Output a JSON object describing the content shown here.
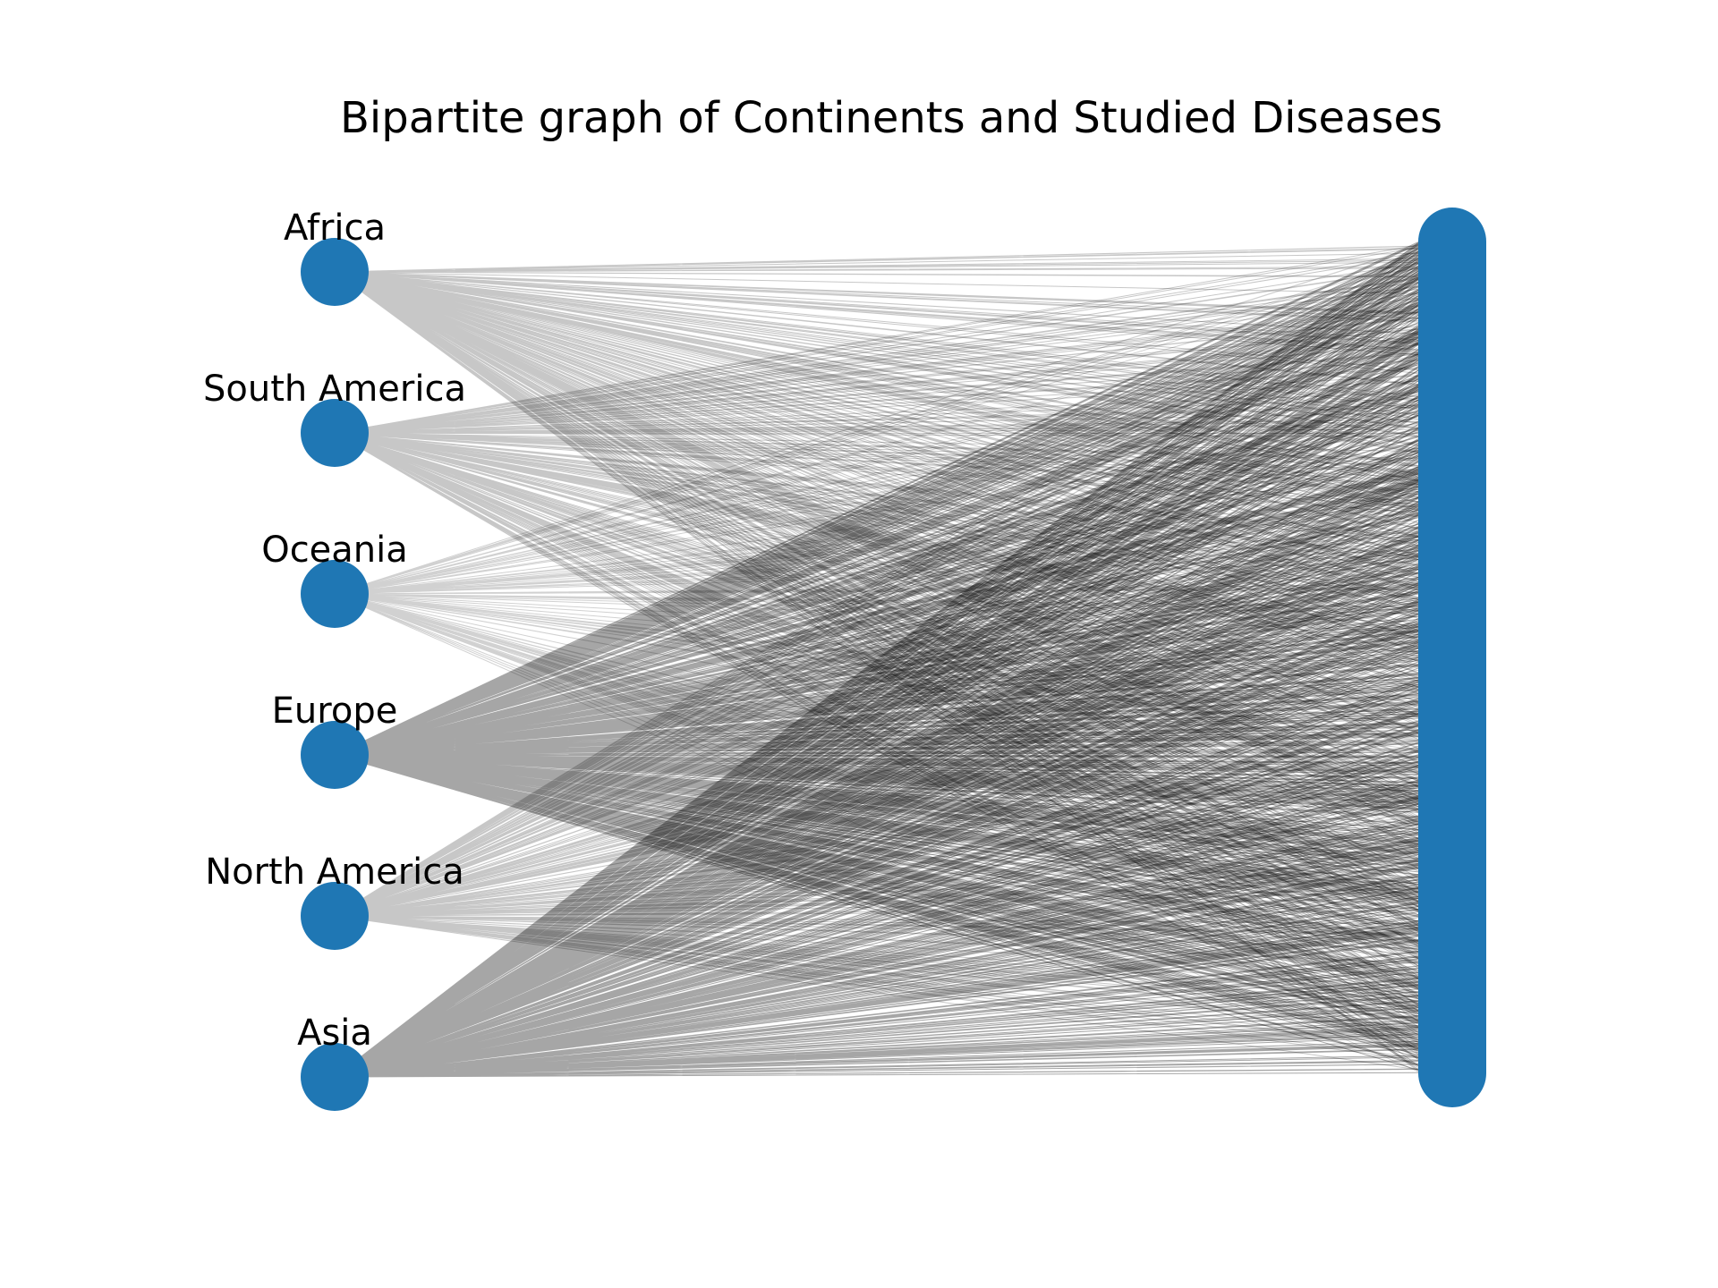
{
  "title": "Bipartite graph of Continents and Studied Diseases",
  "node_color": "#1f77b4",
  "edge_color": "#000000",
  "continents": [
    {
      "name": "Africa",
      "edge_density": 0.45
    },
    {
      "name": "South America",
      "edge_density": 0.3
    },
    {
      "name": "Oceania",
      "edge_density": 0.12
    },
    {
      "name": "Europe",
      "edge_density": 1.0
    },
    {
      "name": "North America",
      "edge_density": 0.3
    },
    {
      "name": "Asia",
      "edge_density": 0.9
    }
  ],
  "diseases": {
    "labels_shown": false
  }
}
